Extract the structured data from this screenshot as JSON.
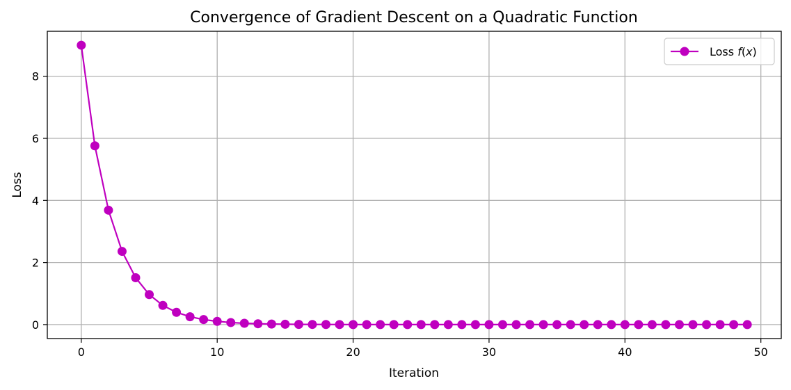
{
  "chart_data": {
    "type": "line",
    "title": "Convergence of Gradient Descent on a Quadratic Function",
    "xlabel": "Iteration",
    "ylabel": "Loss",
    "xlim": [
      -2.5,
      51.5
    ],
    "ylim": [
      -0.45,
      9.45
    ],
    "xticks": [
      0,
      10,
      20,
      30,
      40,
      50
    ],
    "yticks": [
      0,
      2,
      4,
      6,
      8
    ],
    "grid": true,
    "legend_position": "top-right",
    "series": [
      {
        "name": "Loss f(x)",
        "legend_prefix": "Loss ",
        "legend_math": "f",
        "legend_arg": "x",
        "color": "#bf00bf",
        "marker": "circle",
        "x": [
          0,
          1,
          2,
          3,
          4,
          5,
          6,
          7,
          8,
          9,
          10,
          11,
          12,
          13,
          14,
          15,
          16,
          17,
          18,
          19,
          20,
          21,
          22,
          23,
          24,
          25,
          26,
          27,
          28,
          29,
          30,
          31,
          32,
          33,
          34,
          35,
          36,
          37,
          38,
          39,
          40,
          41,
          42,
          43,
          44,
          45,
          46,
          47,
          48,
          49
        ],
        "values": [
          9.0,
          5.76,
          3.6864,
          2.3593,
          1.51,
          0.9664,
          0.6185,
          0.3958,
          0.2533,
          0.1621,
          0.1038,
          0.0664,
          0.0425,
          0.0272,
          0.0174,
          0.0111,
          0.0071,
          0.0046,
          0.0029,
          0.0019,
          0.0012,
          0.0008,
          0.0005,
          0.0003,
          0.0002,
          0.0001,
          0.0001,
          0.0,
          0.0,
          0.0,
          0.0,
          0.0,
          0.0,
          0.0,
          0.0,
          0.0,
          0.0,
          0.0,
          0.0,
          0.0,
          0.0,
          0.0,
          0.0,
          0.0,
          0.0,
          0.0,
          0.0,
          0.0,
          0.0,
          0.0
        ]
      }
    ]
  }
}
